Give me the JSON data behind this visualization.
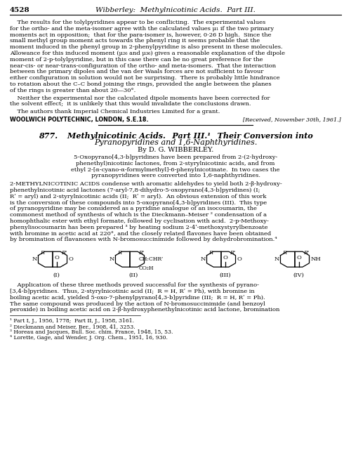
{
  "background_color": "#ffffff",
  "header_page_num": "4528",
  "header_title": "Wibberley:  Methylnicotinic Acids.  Part III.",
  "footnotes": [
    "1 Part I, J., 1956, 1778;  Part II, J., 1958, 3161.",
    "2 Dieckmann and Meiser, Ber., 1908, 41, 3253.",
    "3 Horeau and Jacques, Bull. Soc. chim. France, 1948, 15, 53.",
    "4 Lorette, Gage, and Wender, J. Org. Chem., 1951, 16, 930."
  ]
}
